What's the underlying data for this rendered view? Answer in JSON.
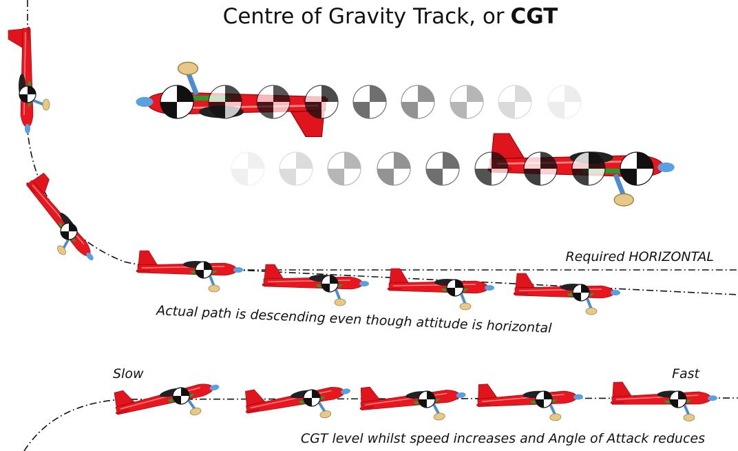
{
  "title": {
    "text": "Centre of Gravity Track, or",
    "emphasis": "CGT"
  },
  "labels": {
    "required": "Required HORIZONTAL",
    "actual": "Actual path is descending even though attitude is horizontal",
    "slow": "Slow",
    "fast": "Fast",
    "level": "CGT level whilst speed increases and Angle of Attack reduces"
  }
}
